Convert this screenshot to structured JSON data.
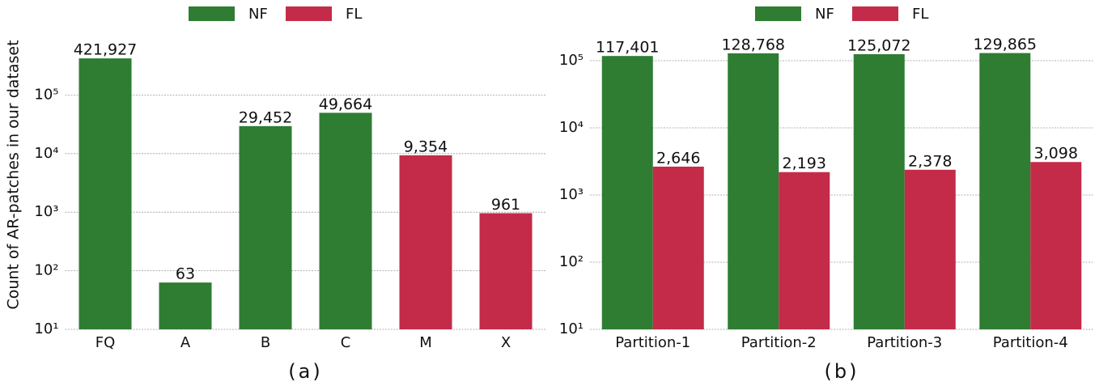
{
  "chart_data": [
    {
      "type": "bar",
      "caption": "(a)",
      "y_label": "Count of AR-patches in our dataset",
      "log_scale": true,
      "grid": true,
      "categories": [
        "FQ",
        "A",
        "B",
        "C",
        "M",
        "X"
      ],
      "series": [
        {
          "name": "NF",
          "color": "#2e7d32",
          "values": [
            421927,
            63,
            29452,
            49664,
            null,
            null
          ],
          "value_labels": [
            "421,927",
            "63",
            "29,452",
            "49,664",
            null,
            null
          ]
        },
        {
          "name": "FL",
          "color": "#c42b48",
          "values": [
            null,
            null,
            null,
            null,
            9354,
            961
          ],
          "value_labels": [
            null,
            null,
            null,
            null,
            "9,354",
            "961"
          ]
        }
      ],
      "ylim": [
        10,
        1000000
      ],
      "yticks": [
        {
          "value": 10,
          "label": "10¹"
        },
        {
          "value": 100,
          "label": "10²"
        },
        {
          "value": 1000,
          "label": "10³"
        },
        {
          "value": 10000,
          "label": "10⁴"
        },
        {
          "value": 100000,
          "label": "10⁵"
        }
      ]
    },
    {
      "type": "bar",
      "caption": "(b)",
      "log_scale": true,
      "grid": true,
      "categories": [
        "Partition-1",
        "Partition-2",
        "Partition-3",
        "Partition-4"
      ],
      "series": [
        {
          "name": "NF",
          "color": "#2e7d32",
          "values": [
            117401,
            128768,
            125072,
            129865
          ],
          "value_labels": [
            "117,401",
            "128,768",
            "125,072",
            "129,865"
          ]
        },
        {
          "name": "FL",
          "color": "#c42b48",
          "values": [
            2646,
            2193,
            2378,
            3098
          ],
          "value_labels": [
            "2,646",
            "2,193",
            "2,378",
            "3,098"
          ]
        }
      ],
      "ylim": [
        10,
        200000
      ],
      "yticks": [
        {
          "value": 10,
          "label": "10¹"
        },
        {
          "value": 100,
          "label": "10²"
        },
        {
          "value": 1000,
          "label": "10³"
        },
        {
          "value": 10000,
          "label": "10⁴"
        },
        {
          "value": 100000,
          "label": "10⁵"
        }
      ]
    }
  ]
}
